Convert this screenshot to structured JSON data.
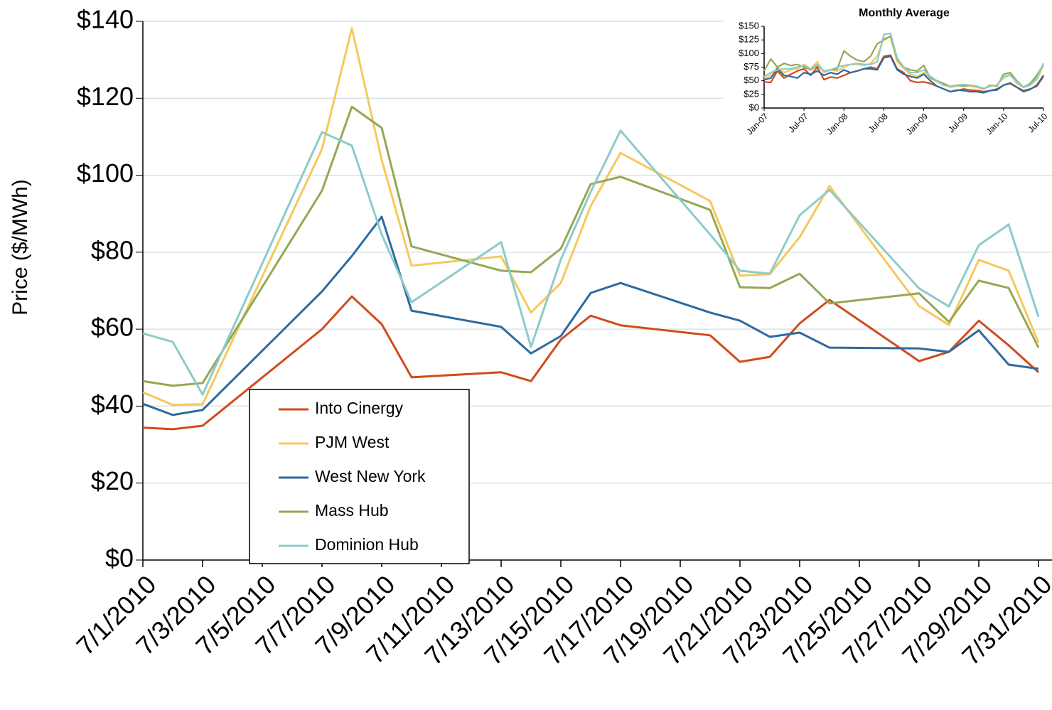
{
  "chart_data": [
    {
      "type": "line",
      "y_label": "Price ($/MWh)",
      "x": [
        "7/1/2010",
        "7/2/2010",
        "7/3/2010",
        "7/7/2010",
        "7/8/2010",
        "7/9/2010",
        "7/10/2010",
        "7/13/2010",
        "7/14/2010",
        "7/15/2010",
        "7/16/2010",
        "7/17/2010",
        "7/20/2010",
        "7/21/2010",
        "7/22/2010",
        "7/23/2010",
        "7/24/2010",
        "7/27/2010",
        "7/28/2010",
        "7/29/2010",
        "7/30/2010",
        "7/31/2010"
      ],
      "xlim": [
        "7/1/2010",
        "7/31/2010"
      ],
      "xticks": [
        "7/1/2010",
        "7/3/2010",
        "7/5/2010",
        "7/7/2010",
        "7/9/2010",
        "7/11/2010",
        "7/13/2010",
        "7/15/2010",
        "7/17/2010",
        "7/19/2010",
        "7/21/2010",
        "7/23/2010",
        "7/25/2010",
        "7/27/2010",
        "7/29/2010",
        "7/31/2010"
      ],
      "ylim": [
        0,
        140
      ],
      "yticks": [
        {
          "value": 0,
          "label": "$0"
        },
        {
          "value": 20,
          "label": "$20"
        },
        {
          "value": 40,
          "label": "$40"
        },
        {
          "value": 60,
          "label": "$60"
        },
        {
          "value": 80,
          "label": "$80"
        },
        {
          "value": 100,
          "label": "$100"
        },
        {
          "value": 120,
          "label": "$120"
        },
        {
          "value": 140,
          "label": "$140"
        }
      ],
      "grid": true,
      "legend": "lower left",
      "series": [
        {
          "name": "Into Cinergy",
          "color": "#d24a1a",
          "values": [
            34.4,
            34,
            34.9,
            60,
            68.5,
            61.3,
            47.5,
            48.8,
            46.5,
            57.3,
            63.5,
            61,
            58.4,
            51.5,
            52.8,
            61.5,
            67.6,
            51.7,
            54.1,
            62.2,
            55.8,
            48.8
          ]
        },
        {
          "name": "PJM West",
          "color": "#f6c85c",
          "values": [
            43.6,
            40.3,
            40.5,
            106.8,
            138.2,
            104,
            76.5,
            78.9,
            64.3,
            72,
            92,
            105.8,
            93.3,
            73.9,
            74.3,
            83.9,
            97.2,
            66,
            61.1,
            78,
            75.2,
            56.5
          ]
        },
        {
          "name": "West New York",
          "color": "#2d6a9f",
          "values": [
            40.6,
            37.7,
            39,
            69.8,
            79,
            89.2,
            64.8,
            60.6,
            53.7,
            58.2,
            69.4,
            72,
            64.3,
            62.2,
            58,
            59.1,
            55.2,
            55,
            54.1,
            59.7,
            50.8,
            49.7
          ]
        },
        {
          "name": "Mass Hub",
          "color": "#94a853",
          "values": [
            46.5,
            45.3,
            46,
            96,
            117.8,
            112.3,
            81.5,
            75.2,
            74.8,
            80.9,
            97.7,
            99.6,
            91,
            70.9,
            70.7,
            74.4,
            66.7,
            69.3,
            61.9,
            72.6,
            70.7,
            55.2
          ]
        },
        {
          "name": "Dominion Hub",
          "color": "#8ccbcb",
          "values": [
            58.9,
            56.7,
            43,
            111.2,
            107.7,
            84.6,
            67,
            82.6,
            55.4,
            78.1,
            95.7,
            111.6,
            84.6,
            75.2,
            74.4,
            89.6,
            96.2,
            70.6,
            65.9,
            81.8,
            87.2,
            63.2
          ]
        }
      ]
    },
    {
      "type": "line",
      "title": "Monthly Average",
      "categories": [
        "Jan-07",
        null,
        null,
        null,
        null,
        null,
        "Jul-07",
        null,
        null,
        null,
        null,
        null,
        "Jan-08",
        null,
        null,
        null,
        null,
        null,
        "Jul-08",
        null,
        null,
        null,
        null,
        null,
        "Jan-09",
        null,
        null,
        null,
        null,
        null,
        "Jul-09",
        null,
        null,
        null,
        null,
        null,
        "Jan-10",
        null,
        null,
        null,
        null,
        null,
        "Jul-10"
      ],
      "ylim": [
        0,
        150
      ],
      "yticks": [
        {
          "value": 0,
          "label": "$0"
        },
        {
          "value": 25,
          "label": "$25"
        },
        {
          "value": 50,
          "label": "$50"
        },
        {
          "value": 75,
          "label": "$75"
        },
        {
          "value": 100,
          "label": "$100"
        },
        {
          "value": 125,
          "label": "$125"
        },
        {
          "value": 150,
          "label": "$150"
        }
      ],
      "series": [
        {
          "name": "Into Cinergy",
          "color": "#d24a1a",
          "values": [
            48,
            47,
            68,
            55,
            62,
            68,
            72,
            60,
            75,
            52,
            57,
            55,
            60,
            65,
            68,
            72,
            75,
            72,
            95,
            97,
            72,
            65,
            50,
            47,
            48,
            45,
            40,
            35,
            30,
            32,
            35,
            33,
            32,
            30,
            32,
            35,
            42,
            45,
            38,
            32,
            35,
            40,
            58
          ]
        },
        {
          "name": "PJM West",
          "color": "#f6c85c",
          "values": [
            55,
            60,
            75,
            65,
            70,
            72,
            80,
            72,
            85,
            65,
            70,
            68,
            75,
            80,
            80,
            78,
            82,
            95,
            128,
            130,
            85,
            72,
            62,
            58,
            65,
            55,
            48,
            42,
            38,
            40,
            42,
            40,
            38,
            35,
            40,
            42,
            55,
            62,
            45,
            38,
            42,
            52,
            78
          ]
        },
        {
          "name": "West New York",
          "color": "#2d6a9f",
          "values": [
            52,
            55,
            72,
            60,
            58,
            55,
            65,
            62,
            68,
            60,
            65,
            62,
            70,
            65,
            68,
            72,
            72,
            70,
            92,
            95,
            70,
            62,
            58,
            55,
            62,
            50,
            40,
            35,
            30,
            33,
            32,
            30,
            30,
            28,
            32,
            33,
            42,
            46,
            38,
            30,
            34,
            42,
            60
          ]
        },
        {
          "name": "Mass Hub",
          "color": "#94a853",
          "values": [
            68,
            90,
            75,
            82,
            78,
            80,
            75,
            70,
            78,
            68,
            70,
            72,
            105,
            95,
            88,
            85,
            95,
            118,
            125,
            132,
            90,
            75,
            70,
            68,
            78,
            55,
            50,
            45,
            40,
            42,
            40,
            42,
            40,
            35,
            42,
            40,
            62,
            65,
            50,
            38,
            45,
            60,
            80
          ]
        },
        {
          "name": "Dominion Hub",
          "color": "#8ccbcb",
          "values": [
            58,
            65,
            70,
            72,
            72,
            75,
            78,
            72,
            80,
            68,
            70,
            75,
            78,
            80,
            82,
            80,
            80,
            85,
            135,
            137,
            92,
            75,
            65,
            65,
            70,
            58,
            50,
            42,
            40,
            42,
            43,
            42,
            40,
            36,
            40,
            42,
            58,
            60,
            48,
            38,
            42,
            55,
            82
          ]
        }
      ]
    }
  ]
}
